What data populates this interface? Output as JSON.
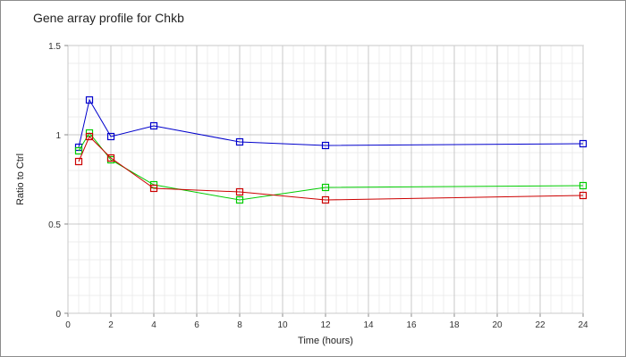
{
  "chart_data": {
    "type": "line",
    "title": "Gene array profile for Chkb",
    "xlabel": "Time (hours)",
    "ylabel": "Ratio to Ctrl",
    "xlim": [
      0,
      24
    ],
    "ylim": [
      0,
      1.5
    ],
    "x_ticks": [
      "0",
      "2",
      "4",
      "6",
      "8",
      "10",
      "12",
      "14",
      "16",
      "18",
      "20",
      "22",
      "24"
    ],
    "y_ticks": [
      "0",
      "0.5",
      "1",
      "1.5"
    ],
    "grid": true,
    "marker": "square",
    "series": [
      {
        "color": "#0000cc",
        "x": [
          0.5,
          1,
          2,
          4,
          8,
          12,
          24
        ],
        "y": [
          0.93,
          1.195,
          0.99,
          1.05,
          0.96,
          0.94,
          0.95
        ]
      },
      {
        "color": "#00cc00",
        "x": [
          0.5,
          1,
          2,
          4,
          8,
          12,
          24
        ],
        "y": [
          0.91,
          1.01,
          0.86,
          0.72,
          0.635,
          0.705,
          0.715
        ]
      },
      {
        "color": "#cc0000",
        "x": [
          0.5,
          1,
          2,
          4,
          8,
          12,
          24
        ],
        "y": [
          0.85,
          0.99,
          0.87,
          0.7,
          0.68,
          0.635,
          0.66
        ]
      }
    ]
  }
}
